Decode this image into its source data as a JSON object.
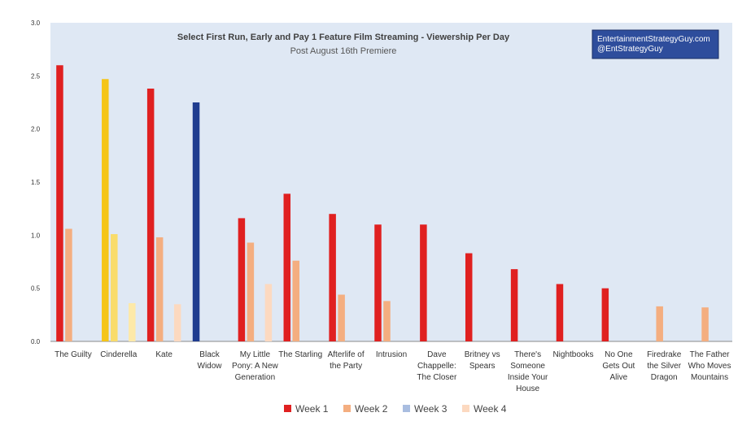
{
  "chart_data": {
    "type": "bar",
    "title": "Select First Run, Early and Pay 1 Feature Film Streaming - Viewership Per Day",
    "subtitle": "Post August 16th Premiere",
    "watermark": [
      "EntertainmentStrategyGuy.com",
      "@EntStrategyGuy"
    ],
    "ylim": [
      0,
      3.0
    ],
    "yticks": [
      "0.0",
      "0.5",
      "1.0",
      "1.5",
      "2.0",
      "2.5",
      "3.0"
    ],
    "grid": false,
    "legend_placement": "bottom",
    "categories": [
      [
        "The Guilty"
      ],
      [
        "Cinderella"
      ],
      [
        "Kate"
      ],
      [
        "Black",
        "Widow"
      ],
      [
        "My Little",
        "Pony: A New",
        "Generation"
      ],
      [
        "The Starling"
      ],
      [
        "Afterlife of",
        "the Party"
      ],
      [
        "Intrusion"
      ],
      [
        "Dave",
        "Chappelle:",
        "The Closer"
      ],
      [
        "Britney vs",
        "Spears"
      ],
      [
        "There's",
        "Someone",
        "Inside Your",
        "House"
      ],
      [
        "Nightbooks"
      ],
      [
        "No One",
        "Gets Out",
        "Alive"
      ],
      [
        "Firedrake",
        "the Silver",
        "Dragon"
      ],
      [
        "The Father",
        "Who Moves",
        "Mountains"
      ]
    ],
    "series": [
      {
        "name": "Week 1",
        "color": "#e02020",
        "values": [
          2.6,
          null,
          2.38,
          null,
          1.16,
          1.39,
          1.2,
          1.1,
          1.1,
          0.83,
          0.68,
          0.54,
          0.5,
          null,
          null
        ]
      },
      {
        "name": "Week 2",
        "color": "#f4ae80",
        "values": [
          1.06,
          null,
          0.98,
          null,
          0.93,
          0.76,
          0.44,
          0.38,
          null,
          null,
          null,
          null,
          null,
          0.33,
          0.32
        ]
      },
      {
        "name": "Week 3",
        "color": "#a9bde0",
        "values": [
          null,
          null,
          null,
          null,
          null,
          null,
          null,
          null,
          null,
          null,
          null,
          null,
          null,
          null,
          null
        ]
      },
      {
        "name": "Week 4",
        "color": "#fcd9c0",
        "values": [
          null,
          null,
          0.35,
          null,
          0.54,
          null,
          null,
          null,
          null,
          null,
          null,
          null,
          null,
          null,
          null
        ]
      }
    ],
    "highlights": [
      {
        "category_index": 1,
        "series": [
          "Week 1",
          "Week 2",
          "Week 4"
        ],
        "colors": [
          "#f5c518",
          "#f9dc6a",
          "#fde9a8"
        ],
        "values": [
          2.47,
          1.01,
          0.36
        ]
      },
      {
        "category_index": 3,
        "series": [
          "Week 1"
        ],
        "colors": [
          "#1f3c8f"
        ],
        "values": [
          2.25
        ]
      }
    ],
    "plot_background": "#dfe8f4",
    "watermark_color": "#2e4d9c"
  }
}
